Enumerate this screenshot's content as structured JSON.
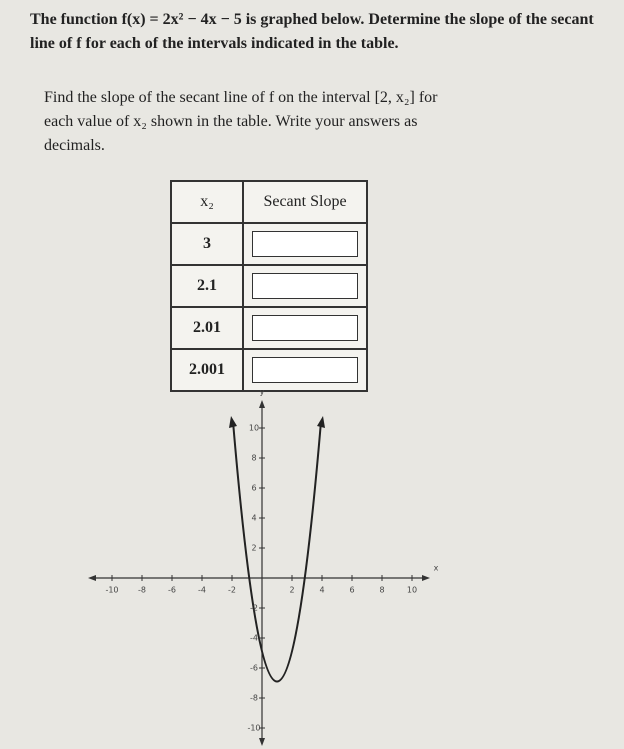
{
  "intro": "The function f(x) = 2x² − 4x − 5 is graphed below. Determine the slope of the secant line of f for each of the intervals indicated in the table.",
  "instructions": "Find the slope of the secant line of f on the interval [2, x₂] for each value of x₂ shown in the table. Write your answers as decimals.",
  "table": {
    "header": [
      "x₂",
      "Secant Slope"
    ],
    "rows": [
      "3",
      "2.1",
      "2.01",
      "2.001"
    ]
  },
  "graph": {
    "x_label": "x",
    "y_label": "y",
    "xticks": [
      -10,
      -8,
      -6,
      -4,
      -2,
      2,
      4,
      6,
      8,
      10
    ],
    "yticks": [
      10,
      8,
      6,
      4,
      2,
      -2,
      -4,
      -6,
      -8,
      -10
    ]
  }
}
